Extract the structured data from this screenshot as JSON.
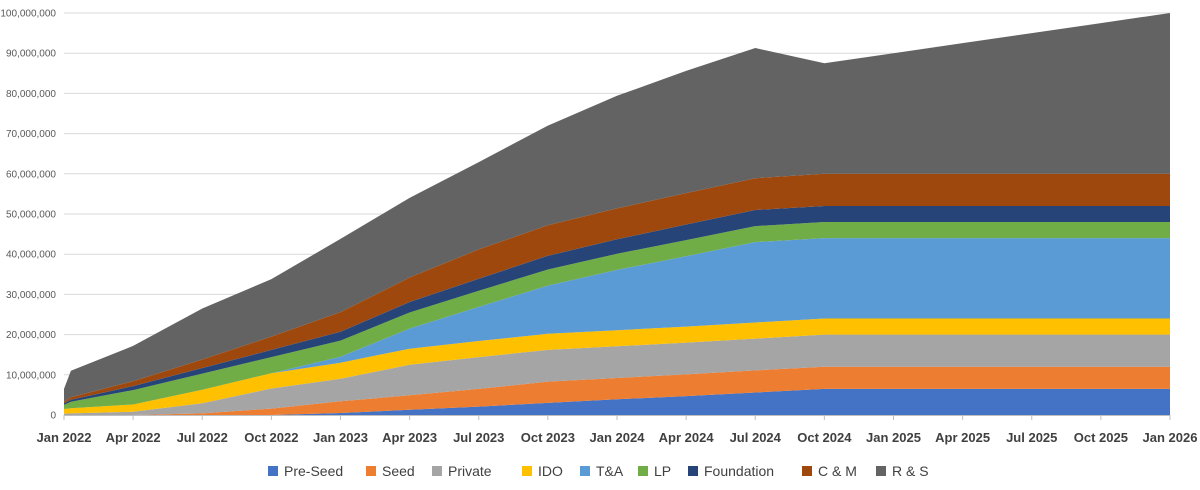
{
  "chart_data": {
    "type": "area",
    "stacked": true,
    "title": "",
    "xlabel": "",
    "ylabel": "",
    "ylim": [
      0,
      100000000
    ],
    "grid": true,
    "legend_position": "bottom",
    "y_ticks": [
      0,
      10000000,
      20000000,
      30000000,
      40000000,
      50000000,
      60000000,
      70000000,
      80000000,
      90000000,
      100000000
    ],
    "y_tick_labels": [
      "0",
      "10,000,000",
      "20,000,000",
      "30,000,000",
      "40,000,000",
      "50,000,000",
      "60,000,000",
      "70,000,000",
      "80,000,000",
      "90,000,000",
      "100,000,000"
    ],
    "x_ticks": [
      0,
      3,
      6,
      9,
      12,
      15,
      18,
      21,
      24,
      27,
      30,
      33,
      36,
      39,
      42,
      45,
      48
    ],
    "x_tick_labels": [
      "Jan 2022",
      "Apr 2022",
      "Jul 2022",
      "Oct 2022",
      "Jan 2023",
      "Apr 2023",
      "Jul 2023",
      "Oct 2023",
      "Jan 2024",
      "Apr 2024",
      "Jul 2024",
      "Oct 2024",
      "Jan 2025",
      "Apr 2025",
      "Jul 2025",
      "Oct 2025",
      "Jan 2026"
    ],
    "x_unit": "months since Jan 2022",
    "x": [
      0,
      0.3,
      3,
      6,
      9,
      12,
      15,
      18,
      21,
      24,
      27,
      30,
      33,
      36,
      39,
      42,
      45,
      48
    ],
    "series": [
      {
        "name": "Pre-Seed",
        "color": "#4472c4",
        "values": [
          0,
          0,
          0,
          0,
          0,
          0.5,
          1.3,
          2.1,
          3.0,
          3.9,
          4.7,
          5.6,
          6.5,
          6.5,
          6.5,
          6.5,
          6.5,
          6.5
        ]
      },
      {
        "name": "Seed",
        "color": "#ed7d31",
        "values": [
          0,
          0,
          0,
          0.4,
          1.6,
          2.9,
          3.6,
          4.4,
          5.3,
          5.3,
          5.4,
          5.5,
          5.5,
          5.5,
          5.5,
          5.5,
          5.5,
          5.5
        ]
      },
      {
        "name": "Private",
        "color": "#a5a5a5",
        "values": [
          0.3,
          0.4,
          0.8,
          2.5,
          5.0,
          5.6,
          7.6,
          7.9,
          7.9,
          7.9,
          7.9,
          7.9,
          8.0,
          8.0,
          8.0,
          8.0,
          8.0,
          8.0
        ]
      },
      {
        "name": "IDO",
        "color": "#ffc000",
        "values": [
          1.2,
          1.3,
          1.8,
          3.4,
          3.8,
          4.0,
          4.0,
          4.0,
          4.0,
          4.0,
          4.0,
          4.0,
          4.0,
          4.0,
          4.0,
          4.0,
          4.0,
          4.0
        ]
      },
      {
        "name": "T&A",
        "color": "#5b9bd5",
        "values": [
          0,
          0,
          0,
          0,
          0,
          1.5,
          5.0,
          8.5,
          12.0,
          15.0,
          17.5,
          20.0,
          20.0,
          20.0,
          20.0,
          20.0,
          20.0,
          20.0
        ]
      },
      {
        "name": "LP",
        "color": "#70ad47",
        "values": [
          1.0,
          1.6,
          3.6,
          4.0,
          4.0,
          4.0,
          4.0,
          4.0,
          4.0,
          4.0,
          4.0,
          4.0,
          4.0,
          4.0,
          4.0,
          4.0,
          4.0,
          4.0
        ]
      },
      {
        "name": "Foundation",
        "color": "#264478",
        "values": [
          0.4,
          0.5,
          1.0,
          1.4,
          1.8,
          2.2,
          2.6,
          3.0,
          3.4,
          3.6,
          3.9,
          4.0,
          4.0,
          4.0,
          4.0,
          4.0,
          4.0,
          4.0
        ]
      },
      {
        "name": "C & M",
        "color": "#9e480e",
        "values": [
          0.4,
          0.6,
          1.2,
          2.1,
          3.3,
          4.9,
          6.1,
          7.3,
          7.6,
          7.7,
          7.8,
          7.9,
          8.0,
          8.0,
          8.0,
          8.0,
          8.0,
          8.0
        ]
      },
      {
        "name": "R & S",
        "color": "#636363",
        "values": [
          3.2,
          6.6,
          8.8,
          12.7,
          14.3,
          18.2,
          19.8,
          21.7,
          24.8,
          28.0,
          30.4,
          32.4,
          27.5,
          30.0,
          32.5,
          35.0,
          37.5,
          40.0
        ]
      }
    ],
    "value_unit": "millions"
  }
}
